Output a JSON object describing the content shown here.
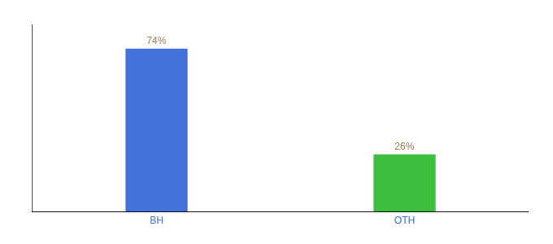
{
  "chart_data": {
    "type": "bar",
    "categories": [
      "BH",
      "OTH"
    ],
    "values": [
      74,
      26
    ],
    "value_labels": [
      "74%",
      "26%"
    ],
    "colors": [
      "#4472db",
      "#3dbf3d"
    ],
    "ylim": [
      0,
      85
    ],
    "grid": false,
    "data_labels": true,
    "tick_labels": "x"
  }
}
